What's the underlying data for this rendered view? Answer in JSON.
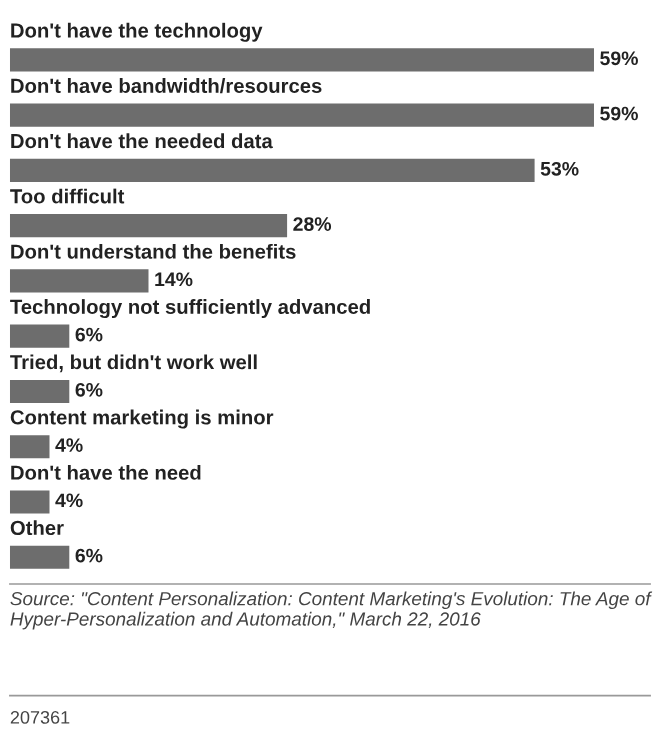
{
  "chart_data": {
    "type": "bar",
    "orientation": "horizontal",
    "categories": [
      "Don't have the technology",
      "Don't have bandwidth/resources",
      "Don't have the needed data",
      "Too difficult",
      "Don't understand the benefits",
      "Technology not sufficiently advanced",
      "Tried, but didn't work well",
      "Content marketing is minor",
      "Don't have the need",
      "Other"
    ],
    "values": [
      59,
      59,
      53,
      28,
      14,
      6,
      6,
      4,
      4,
      6
    ],
    "value_labels": [
      "59%",
      "59%",
      "53%",
      "28%",
      "14%",
      "6%",
      "6%",
      "4%",
      "4%",
      "6%"
    ],
    "color": "#6d6d6d",
    "annotations": [
      "Source: \"Content Personalization: Content Marketing's Evolution: The Age of Hyper-Personalization and Automation,\" March 22, 2016",
      "207361"
    ]
  }
}
